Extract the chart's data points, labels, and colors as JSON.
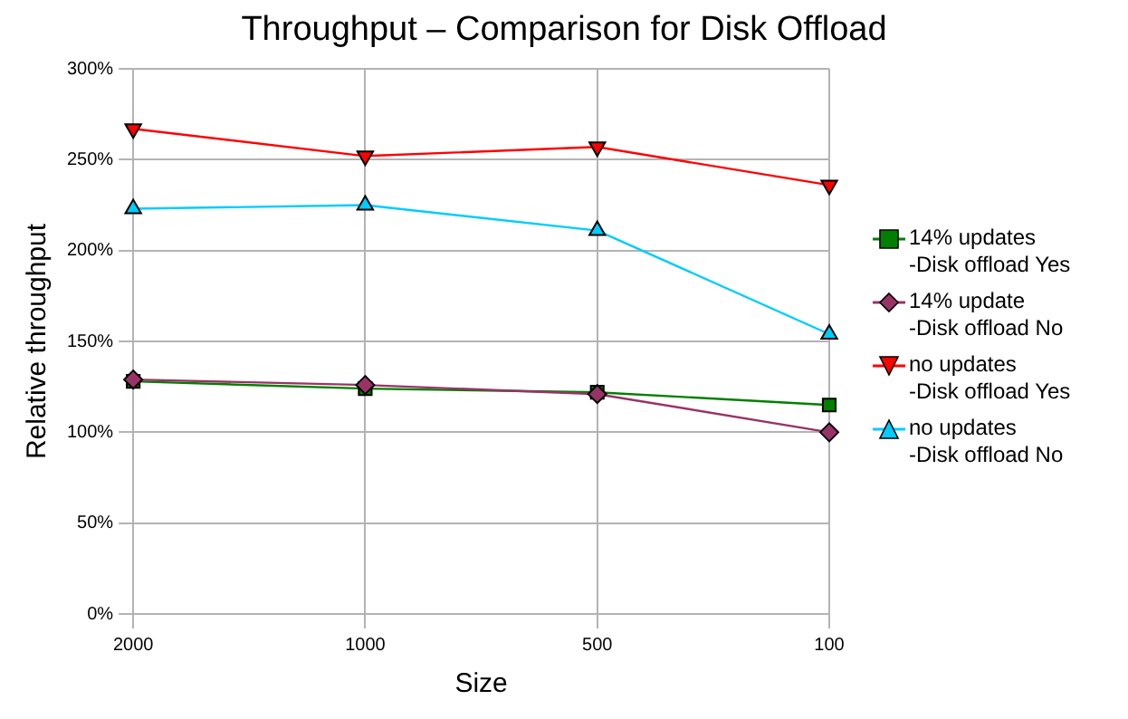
{
  "chart_data": {
    "type": "line",
    "title": "Throughput – Comparison for Disk Offload",
    "xlabel": "Size",
    "ylabel": "Relative throughput",
    "categories": [
      "2000",
      "1000",
      "500",
      "100"
    ],
    "series": [
      {
        "name": "14% updates\n-Disk offload Yes",
        "color": "#007f00",
        "marker": "square",
        "values": [
          128,
          124,
          122,
          115
        ]
      },
      {
        "name": "14% update\n-Disk offload No",
        "color": "#993366",
        "marker": "diamond",
        "values": [
          129,
          126,
          121,
          100
        ]
      },
      {
        "name": "no updates\n-Disk offload Yes",
        "color": "#ff0000",
        "marker": "triangle-down",
        "values": [
          267,
          252,
          257,
          236
        ]
      },
      {
        "name": "no updates\n-Disk offload No",
        "color": "#00ccff",
        "marker": "triangle",
        "values": [
          223,
          225,
          211,
          154
        ]
      }
    ],
    "ylim": [
      0,
      300
    ],
    "yticks": [
      {
        "value": 0,
        "label": "0%"
      },
      {
        "value": 50,
        "label": "50%"
      },
      {
        "value": 100,
        "label": "100%"
      },
      {
        "value": 150,
        "label": "150%"
      },
      {
        "value": 200,
        "label": "200%"
      },
      {
        "value": 250,
        "label": "250%"
      },
      {
        "value": 300,
        "label": "300%"
      }
    ],
    "grid": true,
    "legend": "right",
    "line_style": "solid"
  }
}
